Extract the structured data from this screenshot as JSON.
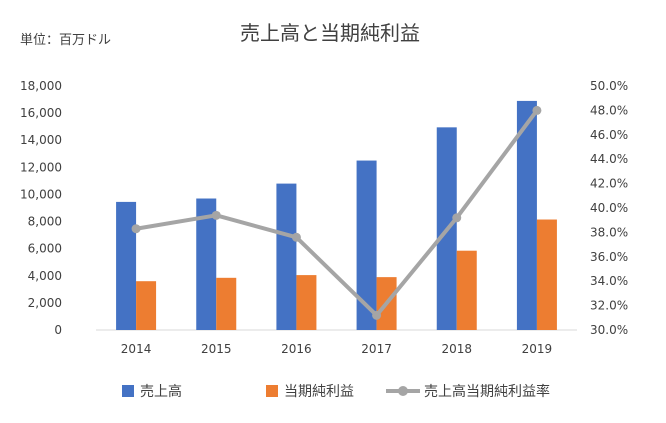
{
  "unit_label": "単位：百万ドル",
  "chart_data": {
    "type": "bar",
    "title": "売上高と当期純利益",
    "categories": [
      "2014",
      "2015",
      "2016",
      "2017",
      "2018",
      "2019"
    ],
    "series": [
      {
        "name": "売上高",
        "type": "bar",
        "axis": "left",
        "color": "#4472C4",
        "values": [
          9450,
          9700,
          10800,
          12500,
          14950,
          16900
        ]
      },
      {
        "name": "当期純利益",
        "type": "bar",
        "axis": "left",
        "color": "#ED7D31",
        "values": [
          3600,
          3850,
          4050,
          3900,
          5850,
          8150
        ]
      },
      {
        "name": "売上高当期純利益率",
        "type": "line",
        "axis": "right",
        "color": "#A5A5A5",
        "marker": "circle",
        "values": [
          38.3,
          39.4,
          37.6,
          31.2,
          39.2,
          48.0
        ]
      }
    ],
    "y_left": {
      "min": 0,
      "max": 18000,
      "step": 2000,
      "tick_labels": [
        "0",
        "2,000",
        "4,000",
        "6,000",
        "8,000",
        "10,000",
        "12,000",
        "14,000",
        "16,000",
        "18,000"
      ]
    },
    "y_right": {
      "min": 30.0,
      "max": 50.0,
      "step": 2.0,
      "tick_labels": [
        "30.0%",
        "32.0%",
        "34.0%",
        "36.0%",
        "38.0%",
        "40.0%",
        "42.0%",
        "44.0%",
        "46.0%",
        "48.0%",
        "50.0%"
      ]
    },
    "grid": false,
    "legend_position": "bottom"
  }
}
